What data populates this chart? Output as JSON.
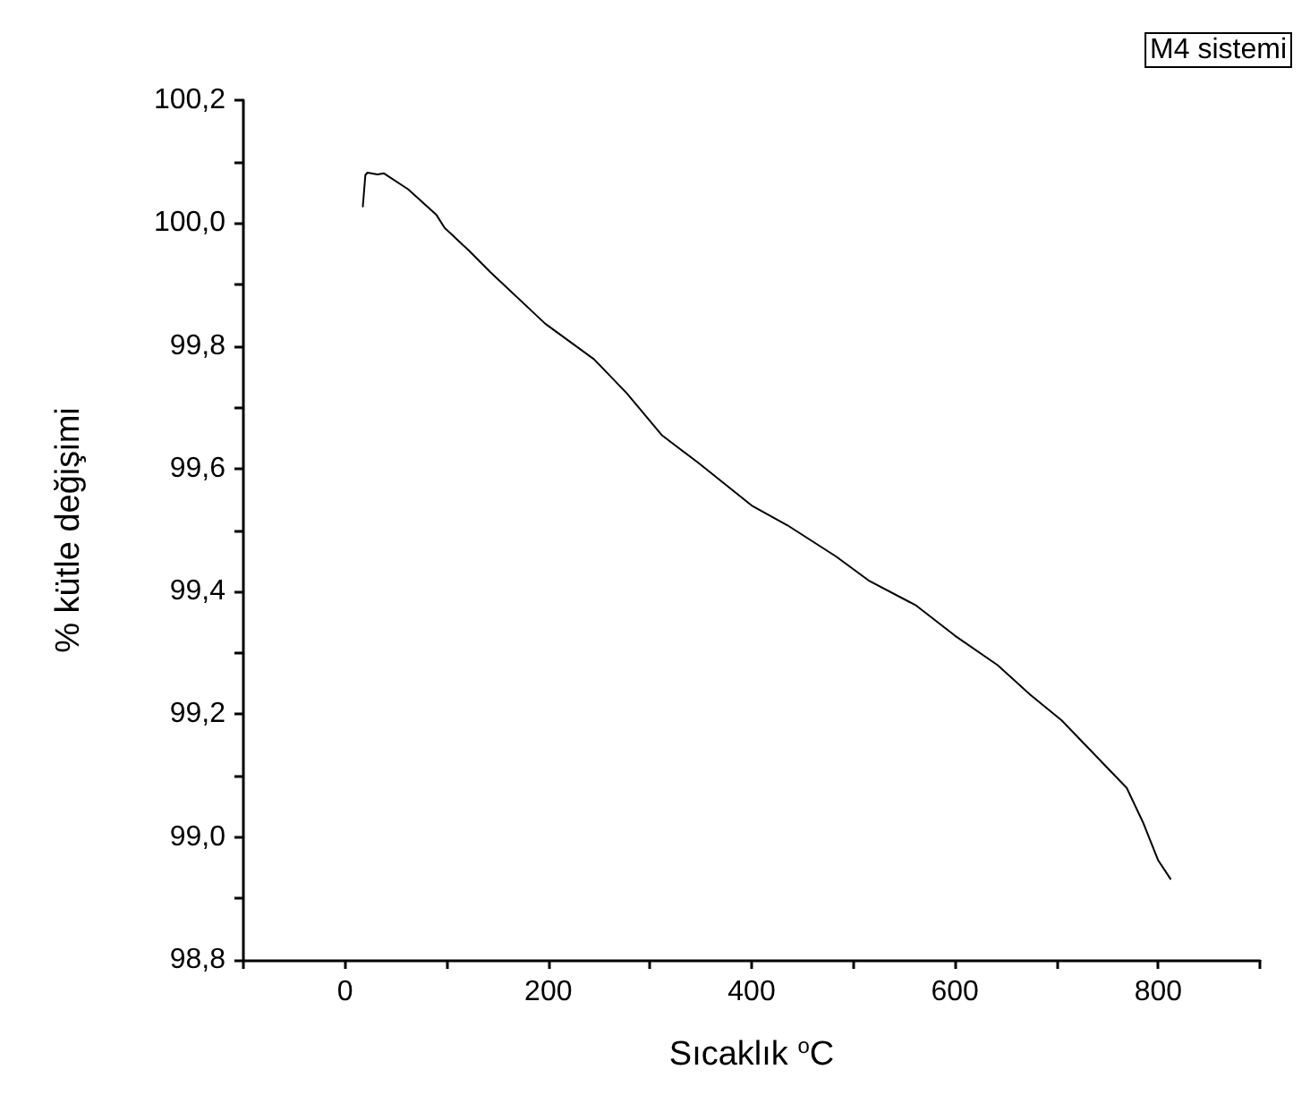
{
  "chart_data": {
    "type": "line",
    "xlabel": "Sıcaklık $^{o}$C",
    "ylabel": "% kütle değişimi",
    "annotations": [
      "M4 sistemi"
    ],
    "x": [
      17.5,
      20,
      22,
      32,
      38,
      62,
      90,
      98,
      122,
      143,
      197,
      245,
      277,
      312,
      348,
      400,
      435,
      483,
      515,
      562,
      600,
      642,
      674,
      705,
      737,
      769,
      785,
      800,
      812
    ],
    "series": [
      {
        "color": "#000000",
        "values": [
          100.027,
          100.078,
          100.082,
          100.079,
          100.081,
          100.055,
          100.013,
          99.992,
          99.955,
          99.92,
          99.836,
          99.778,
          99.723,
          99.654,
          99.609,
          99.54,
          99.508,
          99.457,
          99.418,
          99.377,
          99.328,
          99.28,
          99.232,
          99.19,
          99.135,
          99.08,
          99.024,
          98.962,
          98.932
        ]
      }
    ],
    "xlim": [
      -100,
      900
    ],
    "xticks": [
      {
        "value": -100,
        "label": null
      },
      0,
      {
        "value": 100,
        "label": null
      },
      200,
      {
        "value": 300,
        "label": null
      },
      400,
      {
        "value": 500,
        "label": null
      },
      600,
      {
        "value": 700,
        "label": null
      },
      800,
      {
        "value": 900,
        "label": null
      }
    ],
    "ylim": [
      98.8,
      100.2
    ],
    "yticks": [
      {
        "value": 98.8,
        "label": "98,8"
      },
      {
        "value": 98.9,
        "label": null
      },
      {
        "value": 99.0,
        "label": "99,0"
      },
      {
        "value": 99.1,
        "label": null
      },
      {
        "value": 99.2,
        "label": "99,2"
      },
      {
        "value": 99.3,
        "label": null
      },
      {
        "value": 99.4,
        "label": "99,4"
      },
      {
        "value": 99.5,
        "label": null
      },
      {
        "value": 99.6,
        "label": "99,6"
      },
      {
        "value": 99.7,
        "label": null
      },
      {
        "value": 99.8,
        "label": "99,8"
      },
      {
        "value": 99.9,
        "label": null
      },
      {
        "value": 100.0,
        "label": "100,0"
      },
      {
        "value": 100.1,
        "label": null
      },
      {
        "value": 100.2,
        "label": "100,2"
      }
    ],
    "grid": false,
    "marker": "none",
    "line_style": "solid"
  }
}
